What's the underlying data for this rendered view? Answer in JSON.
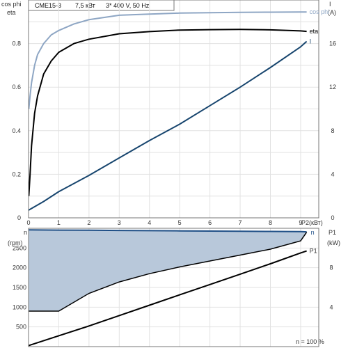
{
  "header": {
    "model": "CME15-3",
    "power": "7,5 кВт",
    "supply": "3* 400 V, 50 Hz"
  },
  "colors": {
    "cos_phi": "#8ea6c4",
    "eta": "#000000",
    "current": "#17456e",
    "speed_fill": "#b8c8da",
    "speed_line": "#1f4f86",
    "p1": "#000000"
  },
  "chart_data": [
    {
      "type": "line",
      "x_label": "P2(кВт)",
      "y_left_label_1": "cos phi",
      "y_left_label_2": "eta",
      "y_right_label_1": "I",
      "y_right_label_2": "(A)",
      "xlim": [
        0,
        9.6
      ],
      "ylim_left": [
        0,
        1.0
      ],
      "ylim_right": [
        0,
        20
      ],
      "x_ticks": [
        "0",
        "1",
        "2",
        "3",
        "4",
        "5",
        "6",
        "7",
        "8",
        "9"
      ],
      "y_left_ticks": [
        "0",
        "0.2",
        "0.4",
        "0.6",
        "0.8"
      ],
      "y_right_ticks": [
        "0",
        "4",
        "8",
        "12",
        "16"
      ],
      "series": [
        {
          "name": "cos phi",
          "axis": "left",
          "x": [
            0.01,
            0.05,
            0.1,
            0.2,
            0.3,
            0.5,
            0.75,
            1.0,
            1.5,
            2.0,
            3.0,
            4.0,
            5.0,
            6.0,
            7.0,
            8.0,
            9.0,
            9.2
          ],
          "y": [
            0.5,
            0.56,
            0.62,
            0.7,
            0.75,
            0.8,
            0.84,
            0.86,
            0.89,
            0.91,
            0.93,
            0.935,
            0.94,
            0.942,
            0.943,
            0.944,
            0.945,
            0.945
          ]
        },
        {
          "name": "eta",
          "axis": "left",
          "x": [
            0.01,
            0.05,
            0.1,
            0.2,
            0.3,
            0.5,
            0.75,
            1.0,
            1.5,
            2.0,
            3.0,
            4.0,
            5.0,
            6.0,
            7.0,
            8.0,
            9.0,
            9.2
          ],
          "y": [
            0.1,
            0.2,
            0.33,
            0.48,
            0.56,
            0.66,
            0.72,
            0.76,
            0.8,
            0.82,
            0.845,
            0.855,
            0.862,
            0.864,
            0.865,
            0.863,
            0.858,
            0.856
          ]
        },
        {
          "name": "I",
          "axis": "right",
          "x": [
            0.0,
            0.5,
            1.0,
            2.0,
            3.0,
            4.0,
            5.0,
            6.0,
            7.0,
            8.0,
            9.0,
            9.2
          ],
          "y": [
            0.7,
            1.5,
            2.4,
            3.9,
            5.5,
            7.1,
            8.6,
            10.3,
            12.0,
            13.8,
            15.7,
            16.2
          ]
        }
      ]
    },
    {
      "type": "area",
      "x_label": "n = 100 %",
      "y_left_label_1": "n",
      "y_left_label_2": "(rpm)",
      "y_right_label_1": "P1",
      "y_right_label_2": "(kW)",
      "xlim": [
        0,
        9.6
      ],
      "ylim_left": [
        0,
        3000
      ],
      "ylim_right": [
        0,
        12
      ],
      "y_left_ticks": [
        "500",
        "1000",
        "1500",
        "2000",
        "2500"
      ],
      "y_right_ticks": [
        "4",
        "8"
      ],
      "series": [
        {
          "name": "n",
          "axis": "left",
          "style": "filled-band",
          "x": [
            0.0,
            1.0,
            2.0,
            3.0,
            4.0,
            5.0,
            6.0,
            7.0,
            8.0,
            9.0,
            9.2
          ],
          "y_max": [
            2960,
            2955,
            2950,
            2945,
            2940,
            2935,
            2930,
            2925,
            2920,
            2915,
            2910
          ],
          "y_min": [
            900,
            900,
            1350,
            1640,
            1850,
            2020,
            2170,
            2320,
            2470,
            2680,
            2900
          ]
        },
        {
          "name": "P1",
          "axis": "right",
          "x": [
            0.0,
            1.0,
            2.0,
            3.0,
            4.0,
            5.0,
            6.0,
            7.0,
            8.0,
            9.0,
            9.2
          ],
          "y": [
            0.1,
            1.1,
            2.1,
            3.15,
            4.2,
            5.25,
            6.3,
            7.35,
            8.4,
            9.5,
            9.7
          ]
        }
      ]
    }
  ]
}
